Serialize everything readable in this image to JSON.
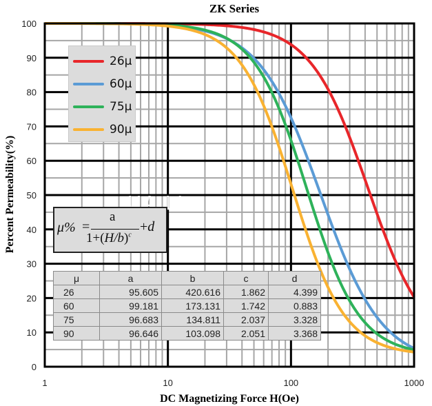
{
  "chart_data": {
    "type": "line",
    "title": "ZK Series",
    "xlabel": "DC Magnetizing Force H(Oe)",
    "ylabel": "Percent Permeability(%)",
    "xscale": "log",
    "xlim": [
      1,
      1000
    ],
    "ylim": [
      0,
      100
    ],
    "x_ticks": [
      "1",
      "10",
      "100",
      "1000"
    ],
    "y_ticks": [
      "0",
      "10",
      "20",
      "30",
      "40",
      "50",
      "60",
      "70",
      "80",
      "90",
      "100"
    ],
    "grid": true,
    "legend_position": "top-left",
    "formula": "μ% = a / (1 + (H/b)^c) + d",
    "series": [
      {
        "name": "26μ",
        "color": "#e8262a",
        "a": 95.605,
        "b": 420.616,
        "c": 1.862,
        "d": 4.399,
        "x": [
          1,
          10,
          30,
          50,
          100,
          200,
          300,
          500,
          1000
        ],
        "values": [
          100.0,
          99.9,
          99.3,
          98.3,
          94.4,
          81.8,
          67.2,
          42.4,
          20.3
        ]
      },
      {
        "name": "60μ",
        "color": "#5b9bd5",
        "a": 99.181,
        "b": 173.131,
        "c": 1.742,
        "d": 0.883,
        "x": [
          1,
          10,
          30,
          50,
          100,
          200,
          300,
          500,
          1000
        ],
        "values": [
          100.0,
          99.4,
          95.5,
          89.9,
          72.6,
          43.5,
          27.7,
          14.2,
          5.0
        ]
      },
      {
        "name": "75μ",
        "color": "#2eb25a",
        "a": 96.683,
        "b": 134.811,
        "c": 2.037,
        "d": 3.328,
        "x": [
          1,
          10,
          30,
          50,
          100,
          200,
          300,
          500,
          1000
        ],
        "values": [
          100.0,
          99.5,
          95.4,
          87.8,
          65.3,
          33.6,
          20.1,
          10.6,
          5.1
        ]
      },
      {
        "name": "90μ",
        "color": "#f9b232",
        "a": 96.646,
        "b": 103.098,
        "c": 2.051,
        "d": 3.368,
        "x": [
          1,
          10,
          30,
          50,
          100,
          200,
          300,
          500,
          1000
        ],
        "values": [
          100.0,
          99.2,
          92.6,
          81.6,
          52.4,
          23.1,
          13.7,
          7.6,
          4.4
        ]
      }
    ]
  },
  "formula_box": {
    "lhs": "μ%",
    "equals": "=",
    "numerator": "a",
    "denominator_prefix": "1+",
    "denominator_paren_open": "(",
    "denominator_var": "H/b",
    "denominator_paren_close": ")",
    "denominator_exp": "c",
    "suffix_plus": "+",
    "suffix_var": "d"
  },
  "params_table": {
    "headers": [
      "μ",
      "a",
      "b",
      "c",
      "d"
    ],
    "rows": [
      [
        "26",
        "95.605",
        "420.616",
        "1.862",
        "4.399"
      ],
      [
        "60",
        "99.181",
        "173.131",
        "1.742",
        "0.883"
      ],
      [
        "75",
        "96.683",
        "134.811",
        "2.037",
        "3.328"
      ],
      [
        "90",
        "96.646",
        "103.098",
        "2.051",
        "3.368"
      ]
    ]
  },
  "watermark": "UA LI"
}
